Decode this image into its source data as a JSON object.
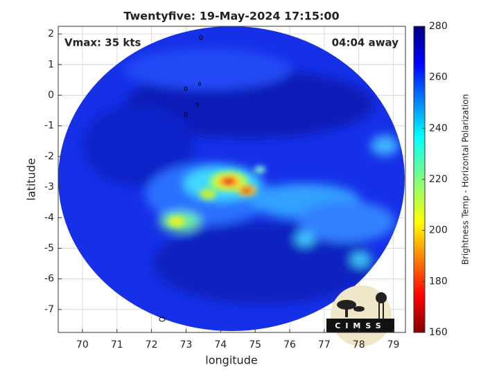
{
  "chart_data": {
    "type": "image",
    "title": "Twentyfive: 19-May-2024 17:15:00",
    "annotations": [
      "Vmax: 35 kts",
      "04:04 away"
    ],
    "xlabel": "longitude",
    "ylabel": "latitude",
    "xlim": [
      69.3,
      79.35
    ],
    "xticks": [
      70,
      71,
      72,
      73,
      74,
      75,
      76,
      77,
      78,
      79
    ],
    "ylim": [
      -7.75,
      2.25
    ],
    "yticks": [
      -7,
      -6,
      -5,
      -4,
      -3,
      -2,
      -1,
      0,
      1,
      2
    ],
    "grid": true,
    "colorbar": {
      "label": "Brightness Temp - Horizontal Polarization",
      "lim": [
        160,
        280
      ],
      "ticks": [
        160,
        180,
        200,
        220,
        240,
        260,
        280
      ]
    },
    "logo": "CIMSS"
  }
}
